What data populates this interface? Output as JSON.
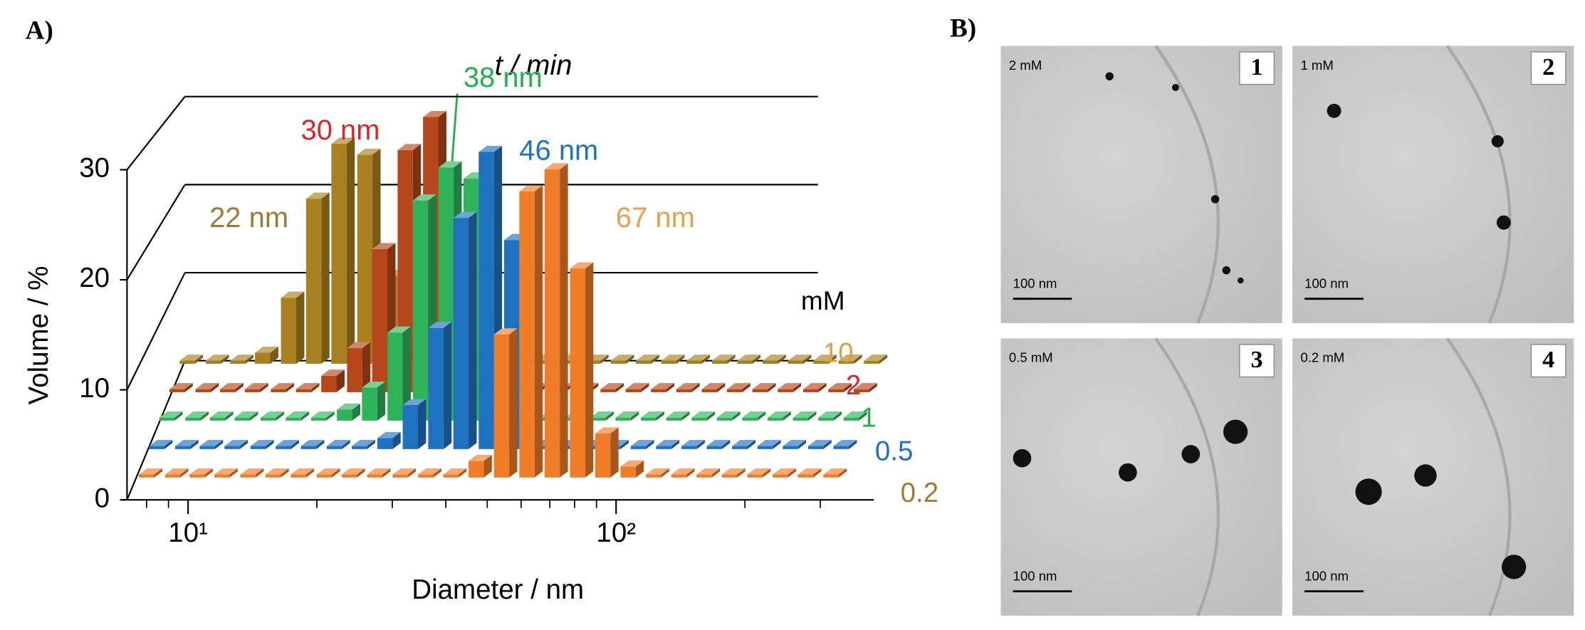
{
  "chart_data": {
    "type": "bar3d",
    "panel_label": "A)",
    "x_label": "Diameter / nm",
    "y_label": "Volume / %",
    "depth_label": "t / min",
    "legend_title": "mM",
    "log_x": true,
    "x": [
      8.0,
      9.2,
      10.5,
      12.0,
      13.8,
      15.8,
      18.1,
      20.8,
      23.8,
      27.3,
      31.3,
      35.9,
      41.1,
      47.1,
      54.0,
      61.9,
      70.9,
      81.3,
      93.1,
      106.7,
      122.3,
      140.2,
      160.6,
      184.1,
      211.0,
      241.8,
      277.1,
      317.6
    ],
    "xlim": [
      7.2,
      400
    ],
    "xticks": [
      {
        "value": 10,
        "label": "10¹"
      },
      {
        "value": 100,
        "label": "10²"
      }
    ],
    "xminorticks": [
      8,
      9,
      20,
      30,
      40,
      50,
      60,
      70,
      80,
      90,
      200,
      300
    ],
    "ylim": [
      0,
      30
    ],
    "yticks": [
      0,
      10,
      20,
      30
    ],
    "grid": true,
    "series": [
      {
        "name": "0.2",
        "color": "#f07c28",
        "label_color": "#9c7a3c",
        "peak_label": "67 nm",
        "peak_label_color": "#e8a050",
        "values": [
          0,
          0,
          0,
          0,
          0,
          0,
          0,
          0,
          0,
          0,
          0,
          0,
          0,
          1.5,
          13,
          26,
          28,
          19,
          4,
          1,
          0,
          0,
          0,
          0,
          0,
          0,
          0,
          0
        ]
      },
      {
        "name": "0.5",
        "color": "#1f72c0",
        "label_color": "#1f72c0",
        "peak_label": "46 nm",
        "peak_label_color": "#1f72c0",
        "values": [
          0,
          0,
          0,
          0,
          0,
          0,
          0,
          0,
          0,
          1,
          4,
          11,
          21,
          27,
          19,
          0,
          0,
          0,
          0,
          0,
          0,
          0,
          0,
          0,
          0,
          0,
          0,
          0
        ]
      },
      {
        "name": "1",
        "color": "#2fb35a",
        "label_color": "#22b04a",
        "peak_label": "38 nm",
        "peak_label_color": "#22b04a",
        "values": [
          0,
          0,
          0,
          0,
          0,
          0,
          0,
          1,
          3,
          8,
          20,
          23,
          22,
          0.5,
          0,
          0,
          0,
          0,
          0,
          0,
          0,
          0,
          0,
          0,
          0,
          0,
          0,
          0
        ]
      },
      {
        "name": "2",
        "color": "#b5471a",
        "label_color": "#d62828",
        "peak_label": "30 nm",
        "peak_label_color": "#d62828",
        "values": [
          0,
          0,
          0,
          0,
          0,
          0,
          1.5,
          4,
          13,
          22,
          25,
          0.5,
          0,
          0,
          0,
          0,
          0,
          0,
          0,
          0,
          0,
          0,
          0,
          0,
          0,
          0,
          0,
          0
        ]
      },
      {
        "name": "10",
        "color": "#a8801f",
        "label_color": "#d8a040",
        "peak_label": "22 nm",
        "peak_label_color": "#9c7a3c",
        "values": [
          0,
          0,
          0,
          1,
          6,
          15,
          20,
          19,
          8,
          2,
          0,
          0,
          0,
          0,
          0,
          0,
          0,
          0,
          0,
          0,
          0,
          0,
          0,
          0,
          0,
          0,
          0,
          0
        ]
      }
    ]
  },
  "tem_panel": {
    "label": "B)",
    "images": [
      {
        "number": "1",
        "concentration": "2 mM",
        "scale_bar": "100 nm"
      },
      {
        "number": "2",
        "concentration": "1 mM",
        "scale_bar": "100 nm"
      },
      {
        "number": "3",
        "concentration": "0.5 mM",
        "scale_bar": "100 nm"
      },
      {
        "number": "4",
        "concentration": "0.2 mM",
        "scale_bar": "100 nm"
      }
    ]
  }
}
